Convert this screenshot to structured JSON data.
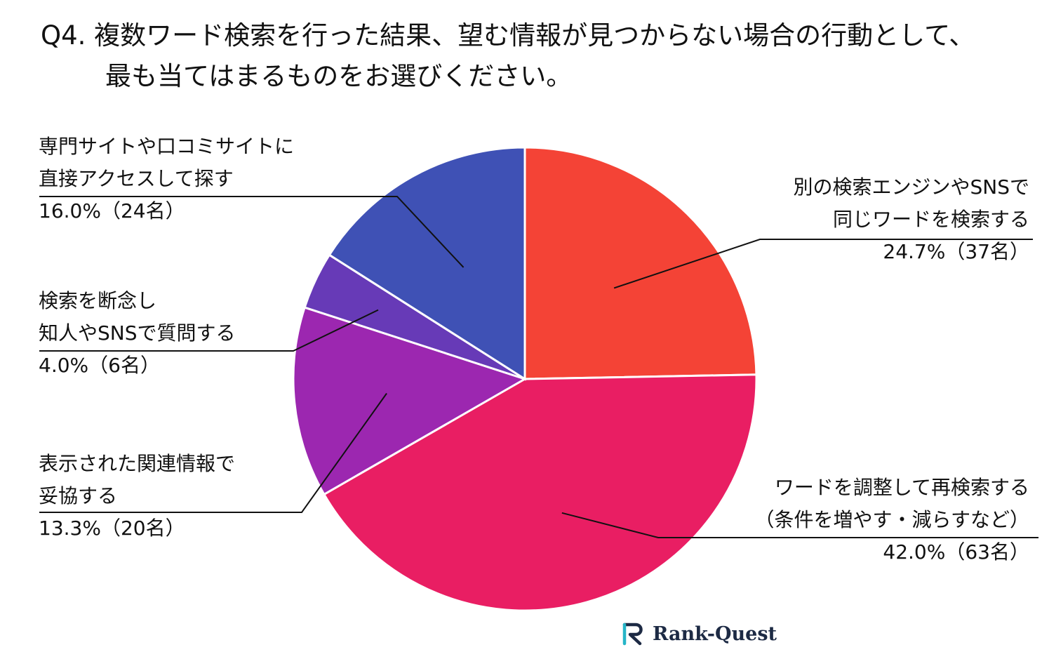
{
  "title": {
    "line1": "Q4. 複数ワード検索を行った結果、望む情報が見つからない場合の行動として、",
    "line2": "最も当てはまるものをお選びください。"
  },
  "chart_data": {
    "type": "pie",
    "start_angle_deg": 0,
    "direction": "clockwise",
    "slices": [
      {
        "line1": "別の検索エンジンやSNSで",
        "line2": "同じワードを検索する",
        "percent": 24.7,
        "count": 37,
        "value_text": "24.7%（37名）",
        "color": "#f44336"
      },
      {
        "line1": "ワードを調整して再検索する",
        "line2": "（条件を増やす・減らすなど）",
        "percent": 42.0,
        "count": 63,
        "value_text": "42.0%（63名）",
        "color": "#e91e63"
      },
      {
        "line1": "表示された関連情報で",
        "line2": "妥協する",
        "percent": 13.3,
        "count": 20,
        "value_text": "13.3%（20名）",
        "color": "#9c27b0"
      },
      {
        "line1": "検索を断念し",
        "line2": "知人やSNSで質問する",
        "percent": 4.0,
        "count": 6,
        "value_text": "4.0%（6名）",
        "color": "#673ab7"
      },
      {
        "line1": "専門サイトや口コミサイトに",
        "line2": "直接アクセスして探す",
        "percent": 16.0,
        "count": 24,
        "value_text": "16.0%（24名）",
        "color": "#3f51b5"
      }
    ]
  },
  "brand": {
    "name": "Rank-Quest",
    "icon": "rank-quest-logo-icon"
  }
}
